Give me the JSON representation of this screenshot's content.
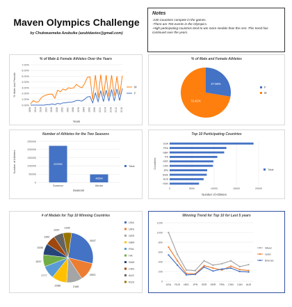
{
  "header": {
    "title": "Maven Olympics Challenge",
    "byline": "by Chukwuemeka Azubuike (azubidavies@gmail.com)"
  },
  "notes": {
    "heading": "Notes",
    "lines": [
      "-230 Countries compete in the games.",
      "-There are 765 events in the Olympics.",
      "-High participating countries tend to win more medals than the rest. This trend has continued over the years."
    ]
  },
  "colors": {
    "orange": "#ff7f0e",
    "blue": "#4472c4",
    "grey": "#a5a5a5",
    "highlight_border": "#2f4fa0"
  },
  "chart_data": [
    {
      "id": "gender-pct",
      "type": "line",
      "title": "% of Male & Female Athletes Over the Years",
      "xlabel": "Years",
      "ylabel": "% Male and Female",
      "ylim": [
        0,
        7
      ],
      "yticks": [
        "0.00%",
        "1.00%",
        "2.00%",
        "3.00%",
        "4.00%",
        "5.00%",
        "6.00%",
        "7.00%"
      ],
      "x": [
        "1896",
        "1900",
        "1904",
        "1906",
        "1908",
        "1912",
        "1920",
        "1924",
        "1928",
        "1932",
        "1936",
        "1948",
        "1952",
        "1956",
        "1960",
        "1964",
        "1968",
        "1972",
        "1976",
        "1980",
        "1984",
        "1988",
        "1992",
        "1994",
        "1996",
        "1998",
        "2000",
        "2002",
        "2004",
        "2006",
        "2008",
        "2010",
        "2012",
        "2014",
        "2016"
      ],
      "xlabels_shown": [
        "1896",
        "1904",
        "1908",
        "1920",
        "1928",
        "1936",
        "1952",
        "1960",
        "1968",
        "1976",
        "1984",
        "1992",
        "1996",
        "2000",
        "2004",
        "2008",
        "2012",
        "2016"
      ],
      "series": [
        {
          "name": "M",
          "color": "#ff7f0e",
          "values": [
            0.2,
            0.8,
            0.5,
            0.6,
            1.3,
            1.6,
            1.8,
            1.9,
            1.9,
            1.2,
            2.6,
            2.3,
            2.8,
            2.6,
            3.0,
            2.9,
            3.0,
            3.6,
            3.2,
            3.0,
            3.7,
            4.8,
            4.9,
            1.0,
            5.2,
            1.3,
            5.3,
            1.5,
            5.2,
            1.5,
            5.2,
            1.6,
            5.0,
            1.7,
            5.1
          ]
        },
        {
          "name": "F",
          "color": "#4472c4",
          "values": [
            0,
            0,
            0,
            0,
            0,
            0,
            0.1,
            0.1,
            0.2,
            0.1,
            0.3,
            0.2,
            0.4,
            0.4,
            0.5,
            0.5,
            0.6,
            0.8,
            0.8,
            0.7,
            1.0,
            1.4,
            1.5,
            0.4,
            2.1,
            0.6,
            2.5,
            0.6,
            2.6,
            0.7,
            2.7,
            0.7,
            2.8,
            0.8,
            2.9
          ]
        }
      ],
      "legend": "right"
    },
    {
      "id": "gender-pie",
      "type": "pie",
      "title": "% of Male and Female Athletes",
      "slices": [
        {
          "name": "F",
          "value": 27.59,
          "label": "27.59%",
          "color": "#4472c4"
        },
        {
          "name": "M",
          "value": 72.41,
          "label": "72.41%",
          "color": "#ff7f0e"
        }
      ],
      "legend": "right"
    },
    {
      "id": "seasons",
      "type": "bar",
      "title": "Number of Athletes for the Two Seasons",
      "xlabel": "Seasons",
      "ylabel": "Number of Athletes",
      "ylim": [
        0,
        250000
      ],
      "yticks": [
        "0",
        "50000",
        "100000",
        "150000",
        "200000",
        "250000"
      ],
      "categories": [
        "Summer",
        "Winter"
      ],
      "values": [
        222552,
        48564
      ],
      "value_labels": [
        "222552",
        "48564"
      ],
      "series_name": "Total",
      "legend": "right"
    },
    {
      "id": "top-countries",
      "type": "bar",
      "orientation": "horizontal",
      "title": "Top 10 Participating Countries",
      "xlabel": "Number of Athletes",
      "ylabel": "Countries",
      "xlim": [
        0,
        20000
      ],
      "xticks": [
        "0",
        "5000",
        "10000",
        "15000",
        "20000"
      ],
      "categories": [
        "USA",
        "FRA",
        "GBR",
        "ITA",
        "GER",
        "CAN",
        "JPN",
        "SWE",
        "AUS",
        "HUN"
      ],
      "values": [
        18853,
        12758,
        12256,
        10715,
        9830,
        9733,
        8444,
        8339,
        7638,
        6607
      ],
      "series_name": "Total",
      "legend": "right"
    },
    {
      "id": "medals-pie",
      "type": "pie",
      "title": "# of Medals for Top 10 Winning Countries",
      "slices": [
        {
          "name": "USA",
          "value": 5637,
          "label": "5637",
          "color": "#4472c4"
        },
        {
          "name": "URS",
          "value": 2503,
          "label": "2503",
          "color": "#ed7d31"
        },
        {
          "name": "GER",
          "value": 2165,
          "label": "2165",
          "color": "#a5a5a5"
        },
        {
          "name": "GBR",
          "value": 2068,
          "label": "2068",
          "color": "#ffc000"
        },
        {
          "name": "FRA",
          "value": 1777,
          "label": "1777",
          "color": "#5b9bd5"
        },
        {
          "name": "ITA",
          "value": 1637,
          "label": "1637",
          "color": "#70ad47"
        },
        {
          "name": "SWE",
          "value": 1536,
          "label": "1536",
          "color": "#264478"
        },
        {
          "name": "CAN",
          "value": 1352,
          "label": "1352",
          "color": "#9e480e"
        },
        {
          "name": "AUS",
          "value": 1320,
          "label": "1320",
          "color": "#636363"
        },
        {
          "name": "RUS",
          "value": 1165,
          "label": "1165",
          "color": "#997300"
        }
      ],
      "legend_order": [
        "USA",
        "URS",
        "GER",
        "GBR",
        "FRA",
        "ITA",
        "SWE",
        "CAN",
        "AUS",
        "RUS"
      ],
      "legend": "right"
    },
    {
      "id": "winning-trend",
      "type": "line",
      "title": "Winning Trend for Top 10 for Last 5 years",
      "ylim": [
        0,
        1200
      ],
      "yticks": [
        "0",
        "200",
        "400",
        "600",
        "800",
        "1000",
        "1200"
      ],
      "categories": [
        "USA",
        "RUS",
        "NED",
        "JPN",
        "GER",
        "GBR",
        "FRA",
        "CHN",
        "CAN",
        "AUS"
      ],
      "series": [
        {
          "name": "Silver",
          "color": "#a5a5a5",
          "values": [
            1000,
            550,
            230,
            220,
            420,
            330,
            360,
            420,
            300,
            340
          ]
        },
        {
          "name": "Gold",
          "color": "#ed7d31",
          "values": [
            700,
            420,
            160,
            150,
            320,
            270,
            230,
            310,
            240,
            220
          ]
        },
        {
          "name": "Bronze",
          "color": "#4472c4",
          "values": [
            540,
            330,
            130,
            140,
            290,
            210,
            250,
            270,
            200,
            190
          ]
        }
      ],
      "legend": "right"
    }
  ]
}
